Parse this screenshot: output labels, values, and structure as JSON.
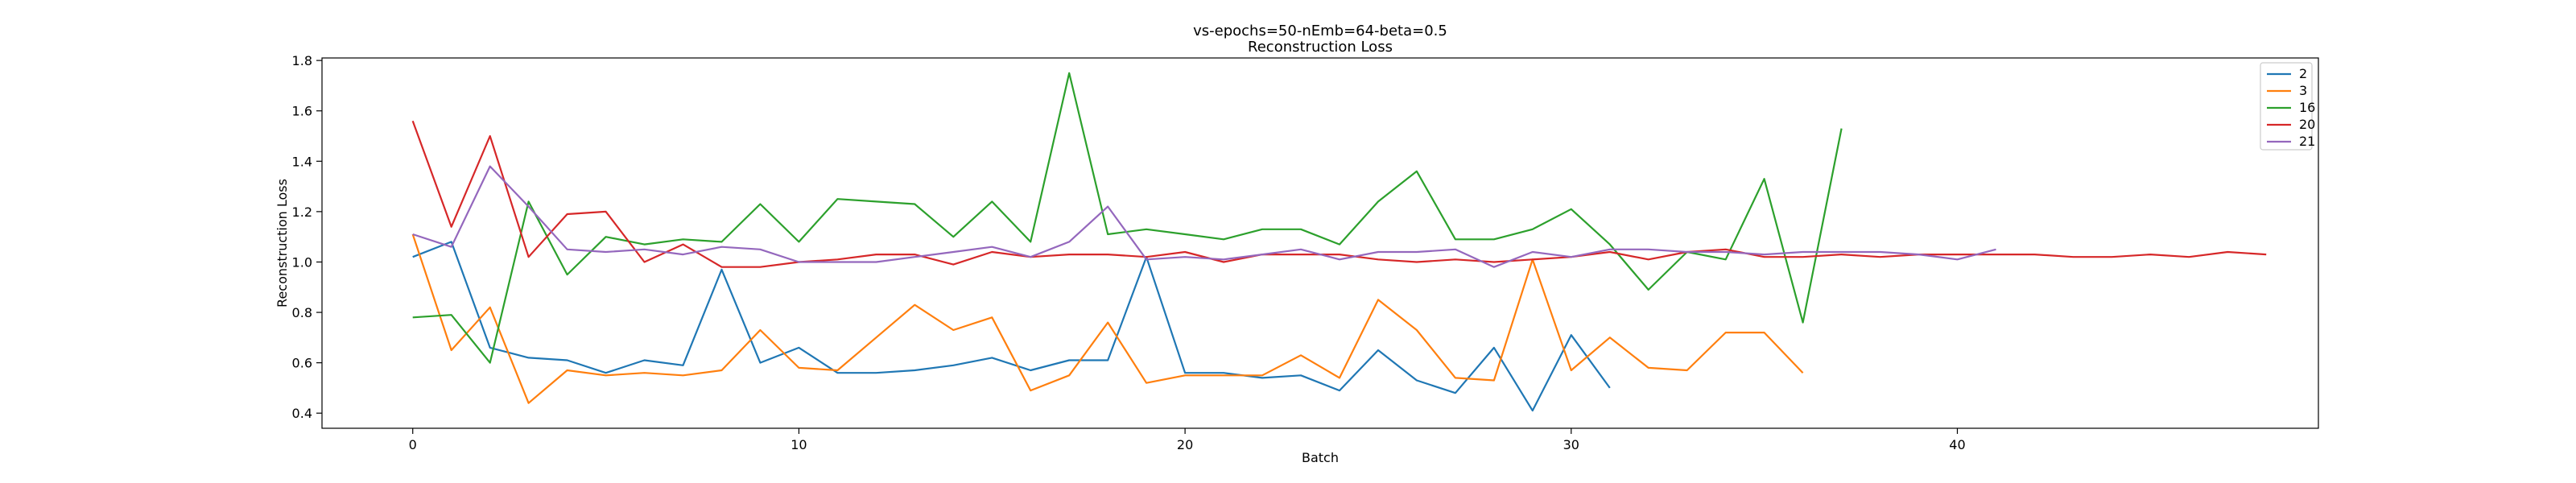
{
  "chart_data": {
    "type": "line",
    "title": "vs-epochs=50-nEmb=64-beta=0.5",
    "subtitle": "Reconstruction Loss",
    "xlabel": "Batch",
    "ylabel": "Reconstruction Loss",
    "xlim": [
      -2.35,
      49.35
    ],
    "ylim": [
      0.34,
      1.81
    ],
    "xticks": [
      0,
      10,
      20,
      30,
      40
    ],
    "yticks": [
      0.4,
      0.6,
      0.8,
      1.0,
      1.2,
      1.4,
      1.6,
      1.8
    ],
    "ytick_labels": [
      "0.4",
      "0.6",
      "0.8",
      "1.0",
      "1.2",
      "1.4",
      "1.6",
      "1.8"
    ],
    "grid": false,
    "legend": "top-right",
    "series": [
      {
        "name": "2",
        "color": "#1f77b4",
        "values": [
          1.02,
          1.08,
          0.66,
          0.62,
          0.61,
          0.56,
          0.61,
          0.59,
          0.97,
          0.6,
          0.66,
          0.56,
          0.56,
          0.57,
          0.59,
          0.62,
          0.57,
          0.61,
          0.61,
          1.02,
          0.56,
          0.56,
          0.54,
          0.55,
          0.49,
          0.65,
          0.53,
          0.48,
          0.66,
          0.41,
          0.71,
          0.5
        ]
      },
      {
        "name": "3",
        "color": "#ff7f0e",
        "values": [
          1.11,
          0.65,
          0.82,
          0.44,
          0.57,
          0.55,
          0.56,
          0.55,
          0.57,
          0.73,
          0.58,
          0.57,
          0.7,
          0.83,
          0.73,
          0.78,
          0.49,
          0.55,
          0.76,
          0.52,
          0.55,
          0.55,
          0.55,
          0.63,
          0.54,
          0.85,
          0.73,
          0.54,
          0.53,
          1.01,
          0.57,
          0.7,
          0.58,
          0.57,
          0.72,
          0.72,
          0.56
        ]
      },
      {
        "name": "16",
        "color": "#2ca02c",
        "values": [
          0.78,
          0.79,
          0.6,
          1.24,
          0.95,
          1.1,
          1.07,
          1.09,
          1.08,
          1.23,
          1.08,
          1.25,
          1.24,
          1.23,
          1.1,
          1.24,
          1.08,
          1.75,
          1.11,
          1.13,
          1.11,
          1.09,
          1.13,
          1.13,
          1.07,
          1.24,
          1.36,
          1.09,
          1.09,
          1.13,
          1.21,
          1.07,
          0.89,
          1.04,
          1.01,
          1.33,
          0.76,
          1.53
        ]
      },
      {
        "name": "20",
        "color": "#d62728",
        "values": [
          1.56,
          1.14,
          1.5,
          1.02,
          1.19,
          1.2,
          1.0,
          1.07,
          0.98,
          0.98,
          1.0,
          1.01,
          1.03,
          1.03,
          0.99,
          1.04,
          1.02,
          1.03,
          1.03,
          1.02,
          1.04,
          1.0,
          1.03,
          1.03,
          1.03,
          1.01,
          1.0,
          1.01,
          1.0,
          1.01,
          1.02,
          1.04,
          1.01,
          1.04,
          1.05,
          1.02,
          1.02,
          1.03,
          1.02,
          1.03,
          1.03,
          1.03,
          1.03,
          1.02,
          1.02,
          1.03,
          1.02,
          1.04,
          1.03
        ]
      },
      {
        "name": "21",
        "color": "#9467bd",
        "values": [
          1.11,
          1.06,
          1.38,
          1.22,
          1.05,
          1.04,
          1.05,
          1.03,
          1.06,
          1.05,
          1.0,
          1.0,
          1.0,
          1.02,
          1.04,
          1.06,
          1.02,
          1.08,
          1.22,
          1.01,
          1.02,
          1.01,
          1.03,
          1.05,
          1.01,
          1.04,
          1.04,
          1.05,
          0.98,
          1.04,
          1.02,
          1.05,
          1.05,
          1.04,
          1.04,
          1.03,
          1.04,
          1.04,
          1.04,
          1.03,
          1.01,
          1.05
        ]
      }
    ]
  }
}
